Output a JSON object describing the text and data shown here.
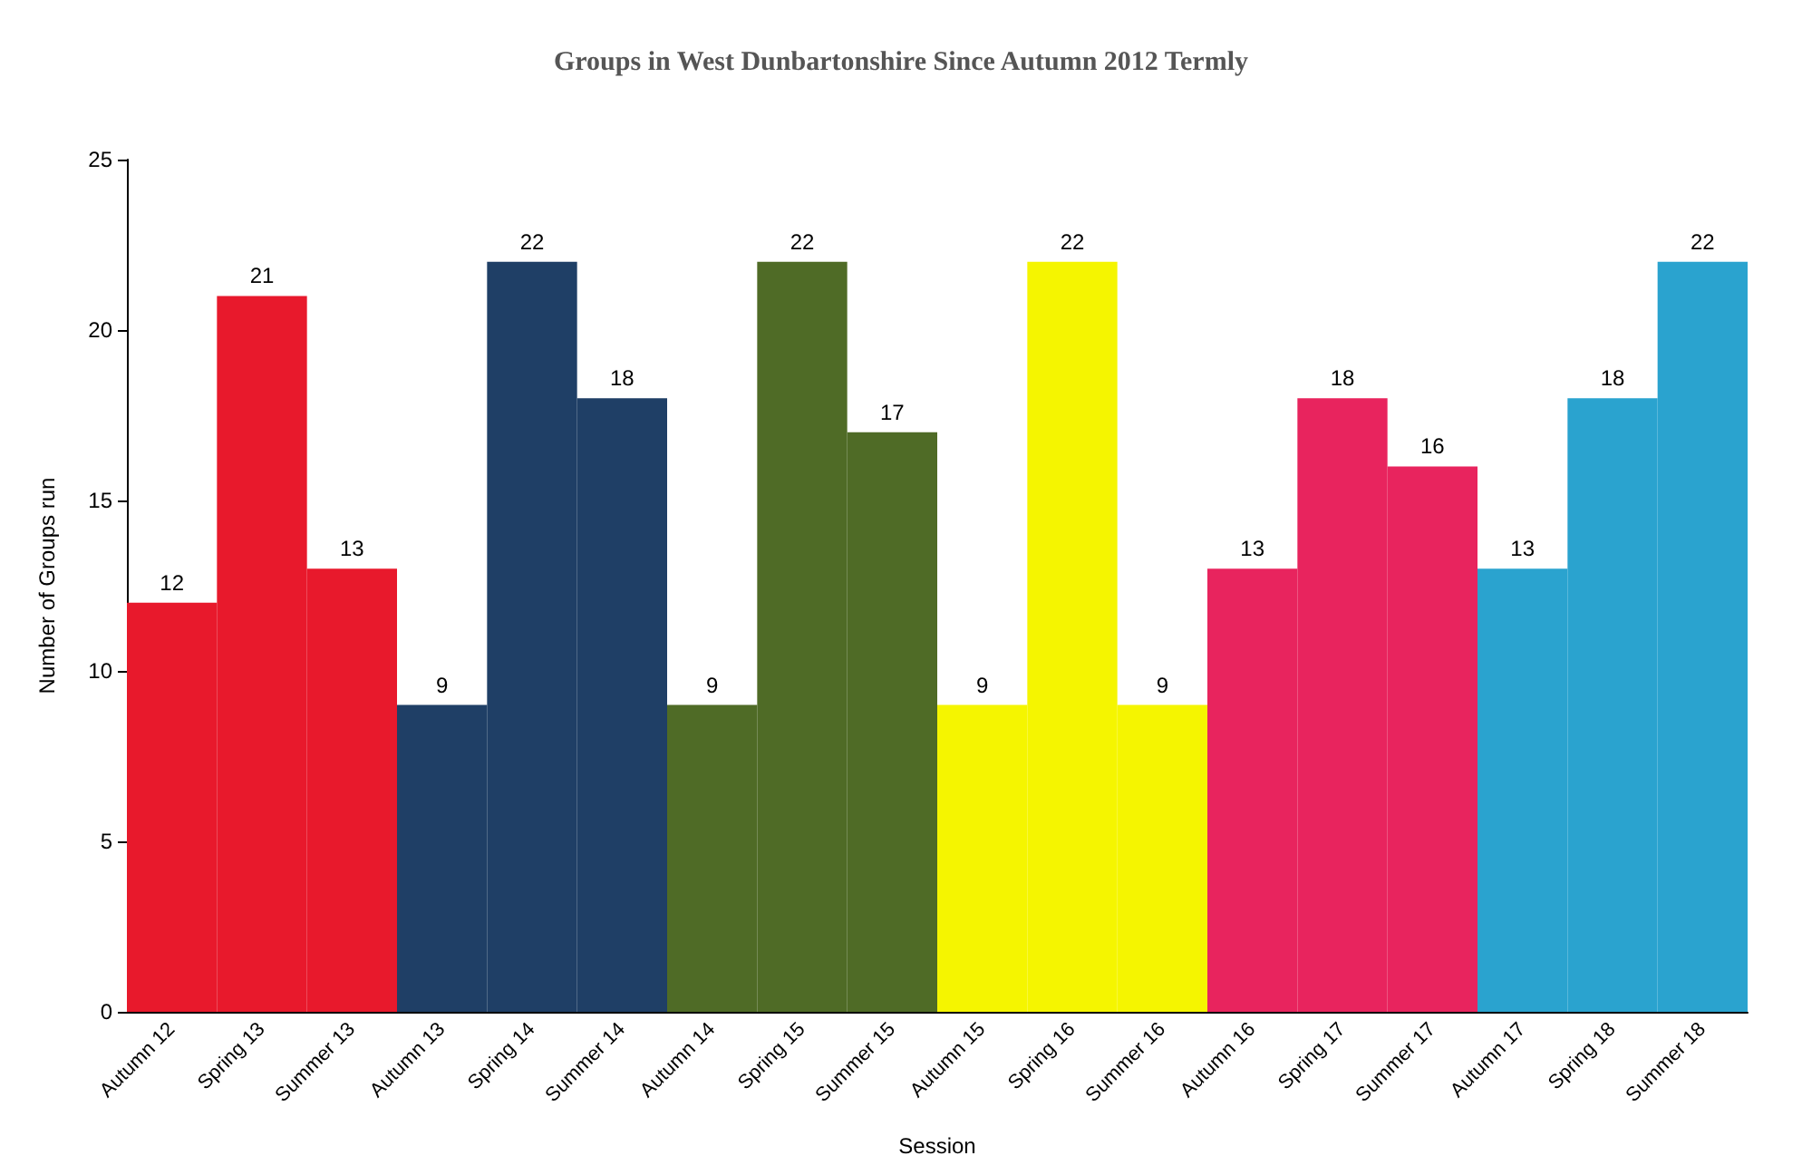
{
  "chart_data": {
    "type": "bar",
    "title": "Groups in West Dunbartonshire Since Autumn 2012 Termly",
    "xlabel": "Session",
    "ylabel": "Number of Groups run",
    "categories": [
      "Autumn 12",
      "Spring 13",
      "Summer 13",
      "Autumn 13",
      "Spring 14",
      "Summer 14",
      "Autumn 14",
      "Spring 15",
      "Summer 15",
      "Autumn 15",
      "Spring 16",
      "Summer 16",
      "Autumn 16",
      "Spring 17",
      "Summer 17",
      "Autumn 17",
      "Spring 18",
      "Summer 18"
    ],
    "values": [
      12,
      21,
      13,
      9,
      22,
      18,
      9,
      22,
      17,
      9,
      22,
      9,
      13,
      18,
      16,
      13,
      18,
      22
    ],
    "colors": [
      "#e8192c",
      "#e8192c",
      "#e8192c",
      "#1f3f66",
      "#1f3f66",
      "#1f3f66",
      "#4f6b26",
      "#4f6b26",
      "#4f6b26",
      "#f5f500",
      "#f5f500",
      "#f5f500",
      "#e8245e",
      "#e8245e",
      "#e8245e",
      "#2aa3cf",
      "#2aa3cf",
      "#2aa3cf"
    ],
    "ylim": [
      0,
      25
    ],
    "yticks": [
      0,
      5,
      10,
      15,
      20,
      25
    ],
    "grid": false,
    "data_labels": true
  }
}
